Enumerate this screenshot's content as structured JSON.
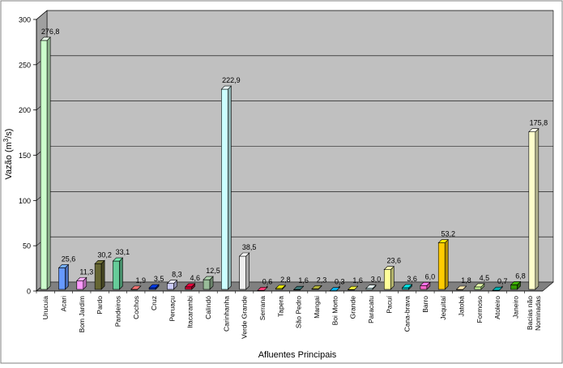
{
  "chart_data": {
    "type": "bar",
    "title": "",
    "xlabel": "Afluentes Principais",
    "ylabel_main": "Vazão (m",
    "ylabel_sup": "3",
    "ylabel_end": "/s)",
    "ylim": [
      0,
      300
    ],
    "yticks": [
      0,
      50,
      100,
      150,
      200,
      250,
      300
    ],
    "grid": true,
    "legend": "none",
    "categories": [
      "Urucuia",
      "Acari",
      "Bom Jardim",
      "Pardo",
      "Pandeiros",
      "Cochos",
      "Cruz",
      "Peruaçu",
      "Itacarambi",
      "Calindó",
      "Carinhanha",
      "Verde Grande",
      "Serrana",
      "Tapera",
      "São Pedro",
      "Mangai",
      "Boi Morto",
      "Grande",
      "Paracatu",
      "Pacuí",
      "Cana-brava",
      "Barro",
      "Jequitaí",
      "Jatobá",
      "Formoso",
      "Atoleiro",
      "Janeiro",
      "Bacias não\nNominadas"
    ],
    "values": [
      276.8,
      25.6,
      11.3,
      30.2,
      33.1,
      1.9,
      3.5,
      8.3,
      4.6,
      12.5,
      222.9,
      38.5,
      0.6,
      2.8,
      1.6,
      2.3,
      0.3,
      1.6,
      3.0,
      23.6,
      3.6,
      6.0,
      53.2,
      1.8,
      4.5,
      0.7,
      6.8,
      175.8
    ],
    "value_labels": [
      "276,8",
      "25,6",
      "11,3",
      "30,2",
      "33,1",
      "1,9",
      "3,5",
      "8,3",
      "4,6",
      "12,5",
      "222,9",
      "38,5",
      "0,6",
      "2,8",
      "1,6",
      "2,3",
      "0,3",
      "1,6",
      "3,0",
      "23,6",
      "3,6",
      "6,0",
      "53,2",
      "1,8",
      "4,5",
      "0,7",
      "6,8",
      "175,8"
    ],
    "colors": [
      "#ccffcc",
      "#6699ff",
      "#ff99ff",
      "#666633",
      "#66cc99",
      "#ff6666",
      "#0033cc",
      "#ccccff",
      "#cc0033",
      "#99bb99",
      "#ccffff",
      "#eeeeee",
      "#ff3366",
      "#cccc00",
      "#336666",
      "#999933",
      "#0099cc",
      "#cccc33",
      "#ccffff",
      "#ffff99",
      "#00cccc",
      "#ff66cc",
      "#ffcc00",
      "#ffcc99",
      "#ccff99",
      "#009999",
      "#339900",
      "#ffffcc"
    ],
    "wall_color": "#c0c0c0",
    "floor_color": "#808080"
  }
}
